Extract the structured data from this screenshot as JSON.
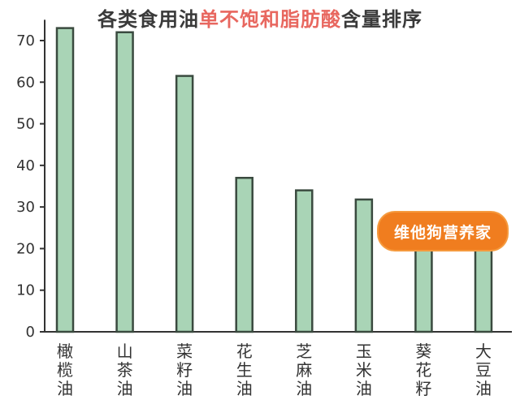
{
  "title": {
    "prefix": "各类食用油",
    "highlight": "单不饱和脂肪酸",
    "suffix": "含量排序"
  },
  "watermark_text": "维他狗营养家",
  "colors": {
    "bar_fill": "#a9d4b6",
    "bar_stroke": "#3a4a3f",
    "axis": "#333333",
    "title_highlight": "#e8675f",
    "watermark_bg": "#f07d1f"
  },
  "chart_data": {
    "type": "bar",
    "title": "各类食用油单不饱和脂肪酸含量排序",
    "categories": [
      "橄榄油",
      "山茶油",
      "菜籽油",
      "花生油",
      "芝麻油",
      "玉米油",
      "葵花籽",
      "大豆油"
    ],
    "values": [
      73,
      72,
      61.5,
      37,
      34,
      31.8,
      21,
      21
    ],
    "xlabel": "",
    "ylabel": "",
    "ylim": [
      0,
      75
    ],
    "yticks": [
      0,
      10,
      20,
      30,
      40,
      50,
      60,
      70
    ],
    "grid": false,
    "legend": "none"
  }
}
